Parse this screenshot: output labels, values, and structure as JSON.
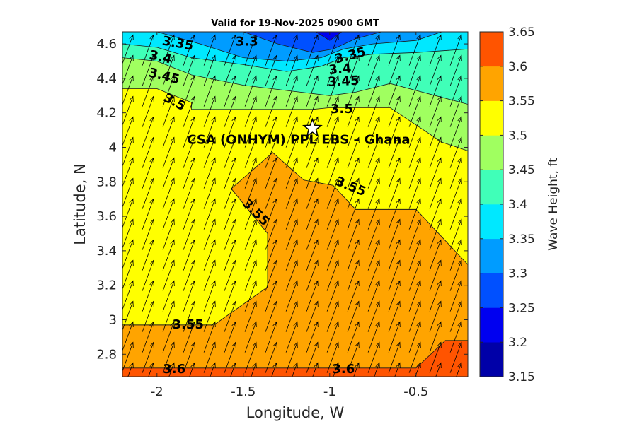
{
  "chart_data": {
    "type": "filled-contour",
    "title": "Valid for 19-Nov-2025 0900 GMT",
    "xlabel": "Longitude, W",
    "ylabel": "Latitude, N",
    "xlim": [
      -2.2,
      -0.2
    ],
    "ylim": [
      2.67,
      4.67
    ],
    "xticks": [
      -2,
      -1.5,
      -1,
      -0.5
    ],
    "xtick_labels": [
      "-2",
      "-1.5",
      "-1",
      "-0.5"
    ],
    "yticks": [
      2.8,
      3,
      3.2,
      3.4,
      3.6,
      3.8,
      4,
      4.2,
      4.4,
      4.6
    ],
    "ytick_labels": [
      "2.8",
      "3",
      "3.2",
      "3.4",
      "3.6",
      "3.8",
      "4",
      "4.2",
      "4.4",
      "4.6"
    ],
    "colorbar": {
      "label": "Wave Height, ft",
      "levels": [
        3.15,
        3.2,
        3.25,
        3.3,
        3.35,
        3.4,
        3.45,
        3.5,
        3.55,
        3.6,
        3.65
      ],
      "tick_labels": [
        "3.15",
        "3.2",
        "3.25",
        "3.3",
        "3.35",
        "3.4",
        "3.45",
        "3.5",
        "3.55",
        "3.6",
        "3.65"
      ],
      "colors": [
        "#0000a8",
        "#0000f0",
        "#0050ff",
        "#009cff",
        "#00e8ff",
        "#40ffb8",
        "#a0ff60",
        "#ffff00",
        "#ffa400",
        "#ff5400"
      ]
    },
    "regions": [
      {
        "level": "3.55",
        "color": "#ffa400",
        "polygon": [
          [
            -2.2,
            2.97
          ],
          [
            -1.67,
            2.97
          ],
          [
            -1.36,
            3.19
          ],
          [
            -1.36,
            3.5
          ],
          [
            -1.57,
            3.76
          ],
          [
            -1.33,
            3.97
          ],
          [
            -1.15,
            3.81
          ],
          [
            -0.98,
            3.78
          ],
          [
            -0.85,
            3.64
          ],
          [
            -0.5,
            3.64
          ],
          [
            -0.2,
            3.32
          ],
          [
            -0.2,
            2.67
          ],
          [
            -2.2,
            2.67
          ]
        ]
      },
      {
        "level": "3.6",
        "color": "#ff5400",
        "polygon": [
          [
            -2.2,
            2.72
          ],
          [
            -0.5,
            2.72
          ],
          [
            -0.33,
            2.88
          ],
          [
            -0.2,
            2.88
          ],
          [
            -0.2,
            2.67
          ],
          [
            -2.2,
            2.67
          ]
        ]
      },
      {
        "level": "3.5",
        "color": "#ffff00",
        "polygon": [
          [
            -2.2,
            4.67
          ],
          [
            -2.2,
            2.97
          ],
          [
            -1.67,
            2.97
          ],
          [
            -1.36,
            3.19
          ],
          [
            -1.36,
            3.5
          ],
          [
            -1.57,
            3.76
          ],
          [
            -1.33,
            3.97
          ],
          [
            -1.15,
            3.81
          ],
          [
            -0.98,
            3.78
          ],
          [
            -0.85,
            3.64
          ],
          [
            -0.5,
            3.64
          ],
          [
            -0.2,
            3.32
          ],
          [
            -0.2,
            4.67
          ]
        ]
      },
      {
        "level": "3.45",
        "color": "#a0ff60",
        "polygon": [
          [
            -2.2,
            4.67
          ],
          [
            -2.2,
            4.34
          ],
          [
            -2.0,
            4.34
          ],
          [
            -1.8,
            4.26
          ],
          [
            -1.8,
            4.22
          ],
          [
            -1.1,
            4.22
          ],
          [
            -1.0,
            4.23
          ],
          [
            -0.65,
            4.23
          ],
          [
            -0.35,
            4.03
          ],
          [
            -0.2,
            3.98
          ],
          [
            -0.2,
            4.67
          ]
        ]
      },
      {
        "level": "3.4",
        "color": "#40ffb8",
        "polygon": [
          [
            -2.2,
            4.67
          ],
          [
            -2.2,
            4.52
          ],
          [
            -2.0,
            4.5
          ],
          [
            -1.8,
            4.42
          ],
          [
            -1.5,
            4.36
          ],
          [
            -1.25,
            4.33
          ],
          [
            -1.0,
            4.3
          ],
          [
            -0.85,
            4.32
          ],
          [
            -0.65,
            4.37
          ],
          [
            -0.2,
            4.25
          ],
          [
            -0.2,
            4.67
          ]
        ]
      },
      {
        "level": "3.35",
        "color": "#00e8ff",
        "polygon": [
          [
            -2.2,
            4.67
          ],
          [
            -2.2,
            4.6
          ],
          [
            -2.0,
            4.58
          ],
          [
            -1.8,
            4.52
          ],
          [
            -1.5,
            4.48
          ],
          [
            -1.25,
            4.44
          ],
          [
            -1.05,
            4.47
          ],
          [
            -0.92,
            4.52
          ],
          [
            -0.75,
            4.54
          ],
          [
            -0.5,
            4.55
          ],
          [
            -0.2,
            4.57
          ],
          [
            -0.2,
            4.67
          ]
        ]
      },
      {
        "level": "3.3",
        "color": "#009cff",
        "polygon": [
          [
            -2.0,
            4.67
          ],
          [
            -1.75,
            4.6
          ],
          [
            -1.5,
            4.52
          ],
          [
            -1.25,
            4.5
          ],
          [
            -1.05,
            4.52
          ],
          [
            -0.92,
            4.57
          ],
          [
            -0.75,
            4.6
          ],
          [
            -0.5,
            4.62
          ],
          [
            -0.35,
            4.67
          ]
        ]
      },
      {
        "level": "3.25",
        "color": "#0050ff",
        "polygon": [
          [
            -1.5,
            4.67
          ],
          [
            -1.3,
            4.6
          ],
          [
            -1.1,
            4.55
          ],
          [
            -0.98,
            4.57
          ],
          [
            -0.85,
            4.63
          ],
          [
            -0.7,
            4.67
          ]
        ]
      },
      {
        "level": "3.2",
        "color": "#0000f0",
        "polygon": [
          [
            -1.08,
            4.67
          ],
          [
            -1.0,
            4.62
          ],
          [
            -0.93,
            4.67
          ]
        ]
      }
    ],
    "contour_labels": [
      {
        "text": "3.35",
        "x": -1.88,
        "y": 4.6,
        "angle": 10
      },
      {
        "text": "3.3",
        "x": -1.48,
        "y": 4.61,
        "angle": 0
      },
      {
        "text": "3.4",
        "x": -1.98,
        "y": 4.52,
        "angle": 12
      },
      {
        "text": "3.45",
        "x": -1.96,
        "y": 4.41,
        "angle": 14
      },
      {
        "text": "3.5",
        "x": -1.9,
        "y": 4.26,
        "angle": 28
      },
      {
        "text": "3.35",
        "x": -0.88,
        "y": 4.53,
        "angle": -15
      },
      {
        "text": "3.4",
        "x": -0.94,
        "y": 4.45,
        "angle": -5
      },
      {
        "text": "3.45",
        "x": -0.92,
        "y": 4.38,
        "angle": -3
      },
      {
        "text": "3.5",
        "x": -0.93,
        "y": 4.22,
        "angle": 0
      },
      {
        "text": "3.55",
        "x": -0.88,
        "y": 3.77,
        "angle": 22
      },
      {
        "text": "3.55",
        "x": -1.43,
        "y": 3.62,
        "angle": 45
      },
      {
        "text": "3.55",
        "x": -1.82,
        "y": 2.97,
        "angle": 0
      },
      {
        "text": "3.6",
        "x": -1.9,
        "y": 2.71,
        "angle": 0
      },
      {
        "text": "3.6",
        "x": -0.92,
        "y": 2.71,
        "angle": 0
      }
    ],
    "site": {
      "name": "CSA (ONHYM) PPL EBS  – Ghana",
      "x": -1.1,
      "y": 4.11
    },
    "wave_direction_deg": 20
  }
}
